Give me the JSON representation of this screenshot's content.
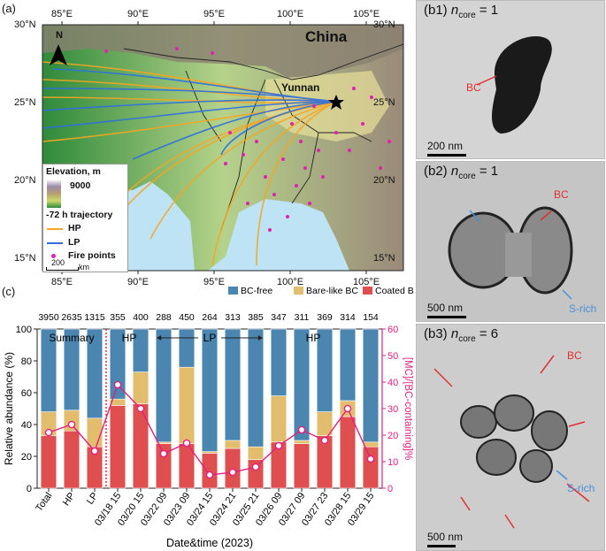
{
  "panel_labels": {
    "a": "(a)",
    "c": "(c)"
  },
  "map": {
    "lon_ticks": [
      "85°E",
      "90°E",
      "95°E",
      "100°E",
      "105°E"
    ],
    "lat_ticks": [
      "30°N",
      "25°N",
      "20°N",
      "15°N"
    ],
    "country_label": "China",
    "province_label": "Yunnan",
    "north_label": "N",
    "legend": {
      "elevation_title": "Elevation, m",
      "elevation_max": "9000",
      "trajectory_title": "-72 h trajectory",
      "hp": "HP",
      "lp": "LP",
      "fire": "Fire points"
    },
    "scalebar_value": "200",
    "scalebar_unit": "km",
    "colors": {
      "hp": "#f5a623",
      "lp": "#2e6fe0",
      "fire": "#e020b0",
      "sea": "#bde3f5"
    }
  },
  "tem": [
    {
      "label": "(b1)",
      "var": "n",
      "sub": "core",
      "eq": "= 1",
      "scale": "200 nm",
      "annotations": [
        "BC"
      ]
    },
    {
      "label": "(b2)",
      "var": "n",
      "sub": "core",
      "eq": "= 1",
      "scale": "500 nm",
      "annotations": [
        "BC",
        "S-rich"
      ]
    },
    {
      "label": "(b3)",
      "var": "n",
      "sub": "core",
      "eq": "= 6",
      "scale": "500 nm",
      "annotations": [
        "BC",
        "S-rich"
      ]
    }
  ],
  "chart_data": {
    "type": "bar",
    "stacked": true,
    "categories": [
      "Total",
      "HP",
      "LP",
      "03/18 15",
      "03/20 15",
      "03/22 09",
      "03/23 09",
      "03/24 15",
      "03/24 21",
      "03/25 21",
      "03/26 09",
      "03/27 09",
      "03/27 23",
      "03/28 15",
      "03/29 15"
    ],
    "counts": [
      "3950",
      "2635",
      "1315",
      "355",
      "400",
      "288",
      "450",
      "264",
      "313",
      "385",
      "347",
      "311",
      "369",
      "314",
      "154"
    ],
    "series": [
      {
        "name": "BC-free",
        "color": "#4a86b0",
        "values": [
          52,
          51,
          56,
          44,
          27,
          71,
          24,
          77,
          70,
          74,
          42,
          70,
          52,
          45,
          71
        ]
      },
      {
        "name": "Bare-like BC",
        "color": "#e3bd6e",
        "values": [
          15,
          13,
          18,
          4,
          20,
          1,
          48,
          1,
          5,
          8,
          29,
          2,
          15,
          10,
          3
        ]
      },
      {
        "name": "Coated BC",
        "color": "#e04f4f",
        "values": [
          33,
          36,
          26,
          52,
          53,
          28,
          28,
          22,
          25,
          18,
          29,
          28,
          33,
          45,
          26
        ]
      }
    ],
    "line": {
      "name": "[MC]/[BC-containing]%",
      "color": "#e0207d",
      "values": [
        21,
        24,
        14,
        39,
        30,
        13,
        17,
        5,
        6,
        8,
        16,
        22,
        18,
        30,
        11
      ]
    },
    "ylabel": "Relative abundance (%)",
    "y2label": "[MC]/[BC-containing]%",
    "xlabel": "Date&time (2023)",
    "ylim": [
      0,
      100
    ],
    "y2lim": [
      0,
      60
    ],
    "yticks": [
      "0",
      "20",
      "40",
      "60",
      "80",
      "100"
    ],
    "y2ticks": [
      "0",
      "10",
      "20",
      "30",
      "40",
      "50",
      "60"
    ],
    "region_labels": {
      "summary": "Summary",
      "hp1": "HP",
      "lp": "LP",
      "hp2": "HP"
    }
  }
}
